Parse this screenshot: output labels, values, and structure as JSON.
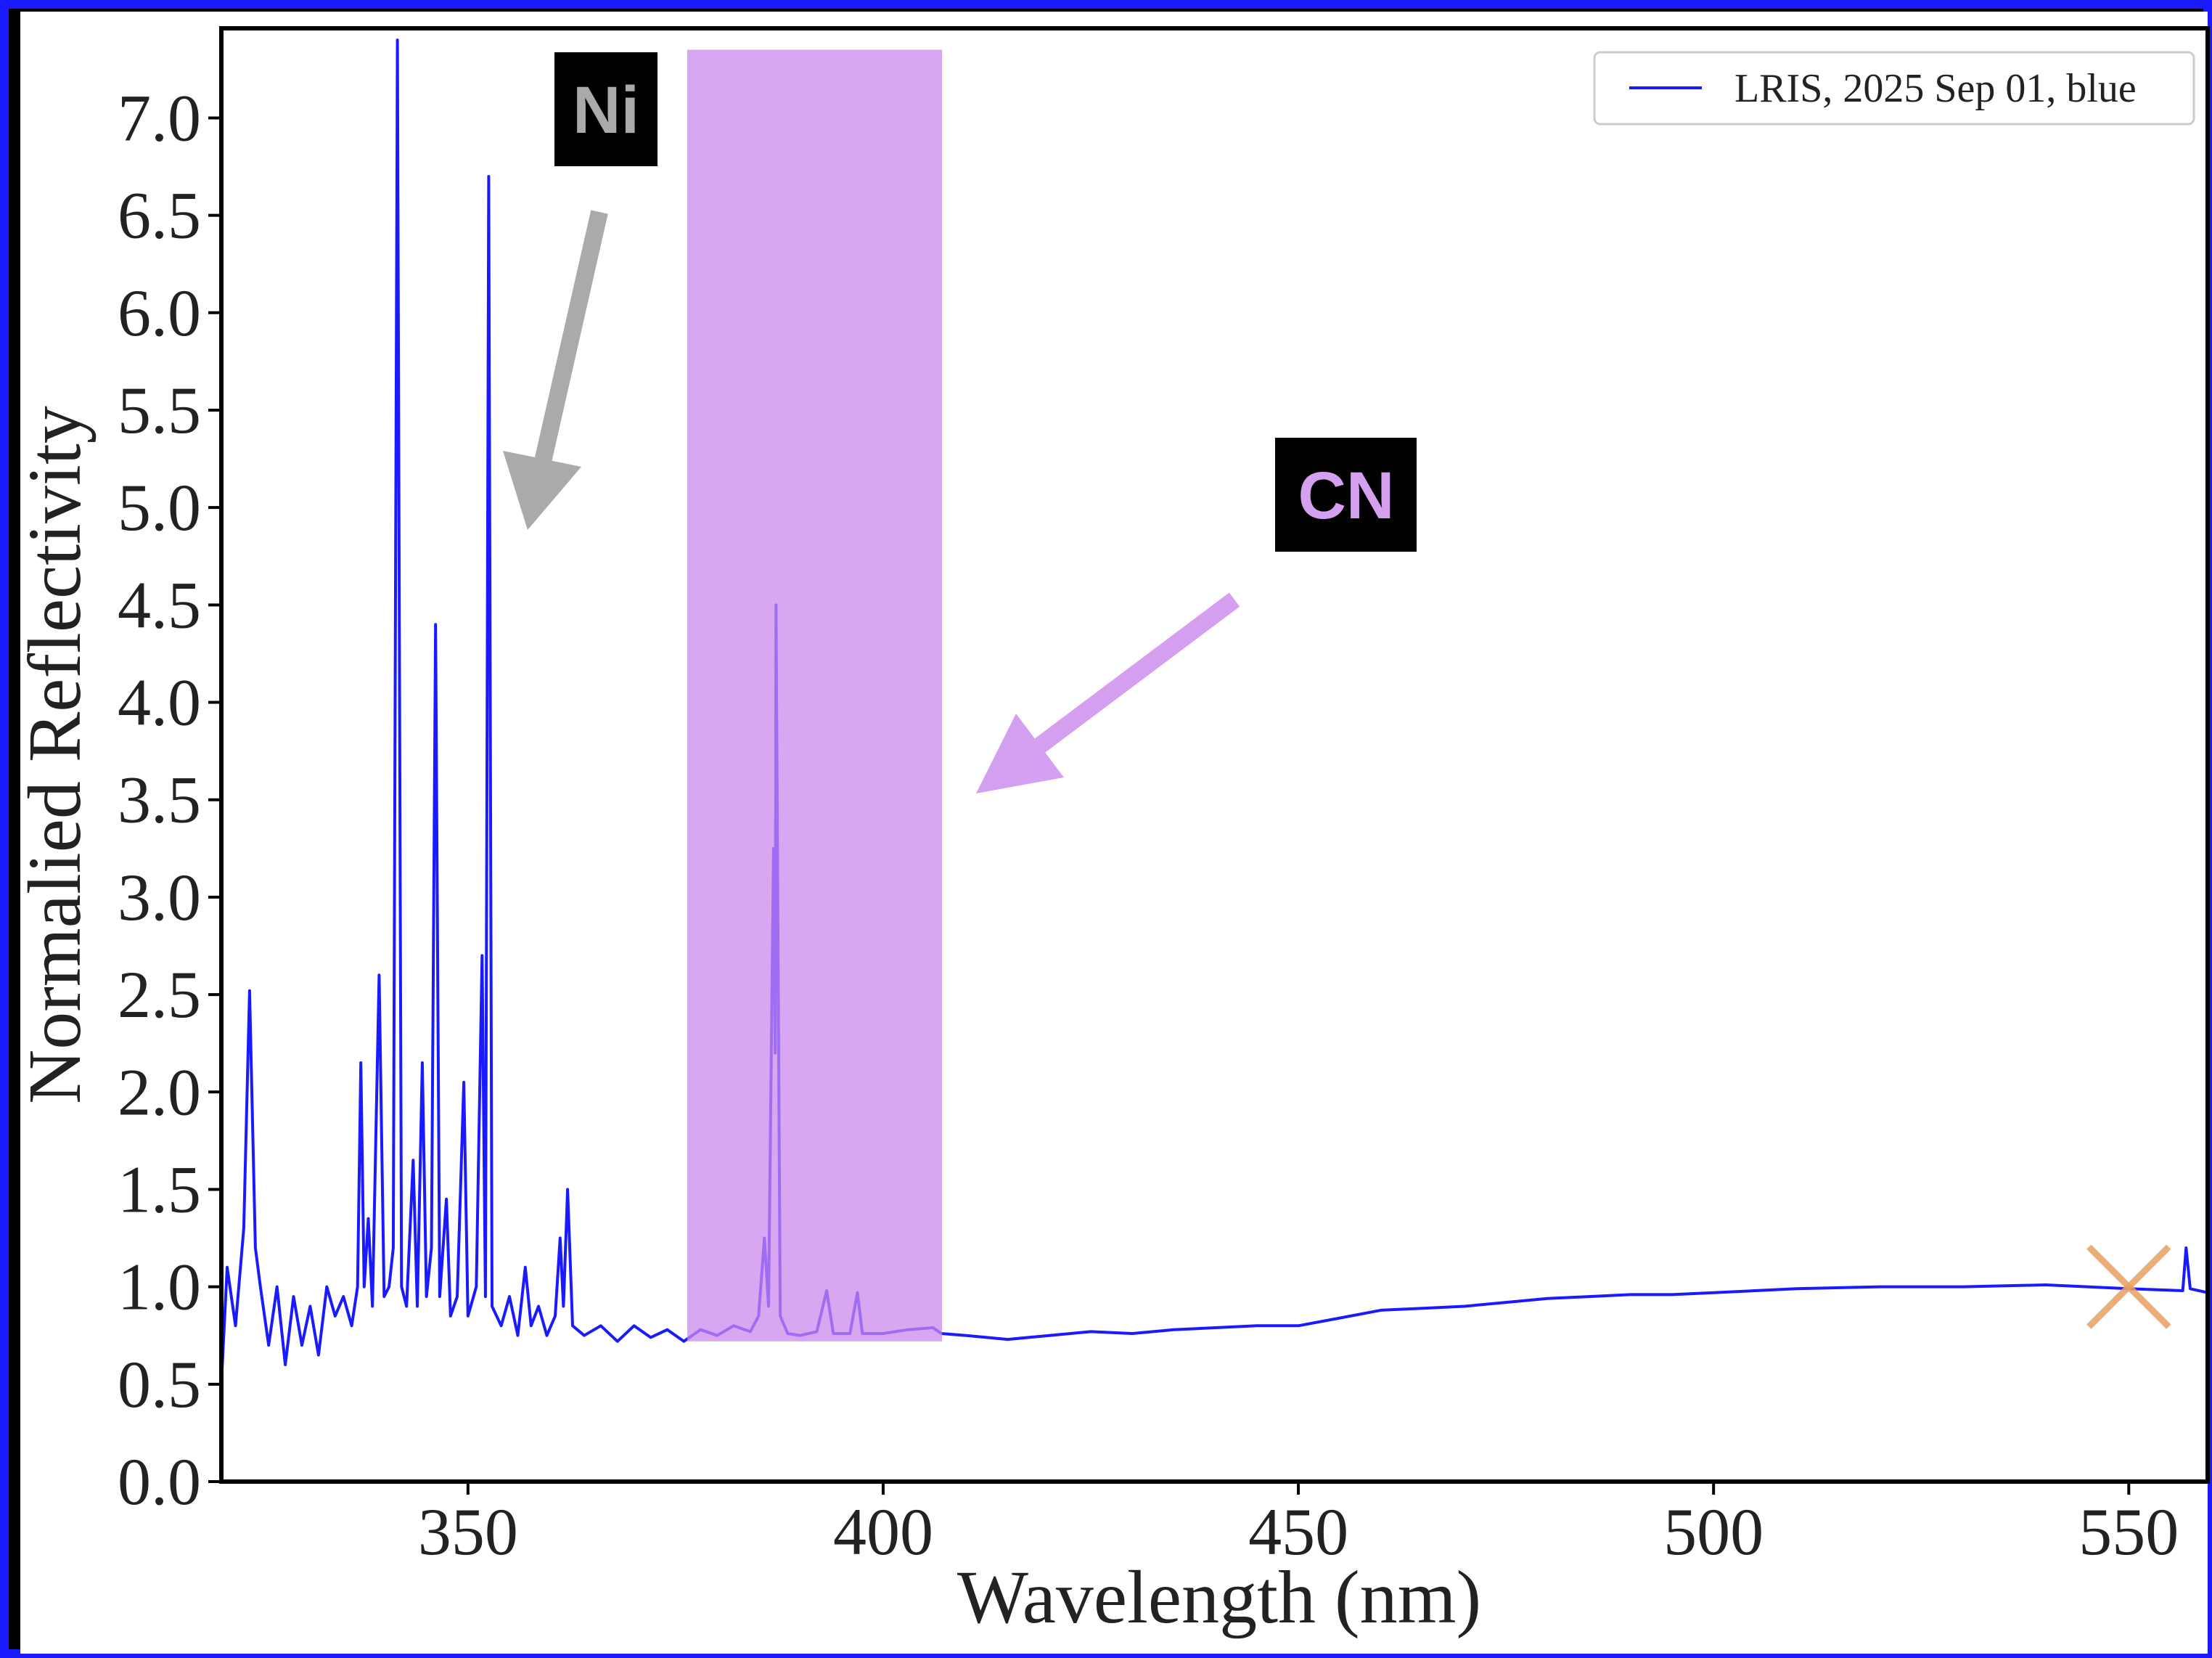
{
  "chart_data": {
    "type": "line",
    "xlabel": "Wavelength (nm)",
    "ylabel": "Normalied Reflectivity",
    "xlim": [
      320.3,
      559.5
    ],
    "ylim": [
      0,
      7.46
    ],
    "xticks": [
      350,
      400,
      450,
      500,
      550
    ],
    "yticks": [
      {
        "value": 0,
        "label": "0.0"
      },
      0.5,
      {
        "value": 1,
        "label": "1.0"
      },
      1.5,
      {
        "value": 2,
        "label": "2.0"
      },
      2.5,
      {
        "value": 3,
        "label": "3.0"
      },
      3.5,
      {
        "value": 4,
        "label": "4.0"
      },
      4.5,
      {
        "value": 5,
        "label": "5.0"
      },
      5.5,
      {
        "value": 6,
        "label": "6.0"
      },
      6.5,
      {
        "value": 7,
        "label": "7.0"
      }
    ],
    "legend": "upper right",
    "series": [
      {
        "name": "LRIS, 2025 Sep 01, blue",
        "color": "#1a1aff",
        "x": [
          320.3,
          321,
          322,
          323,
          323.7,
          324.4,
          325,
          326,
          327,
          328,
          329,
          330,
          331,
          332,
          333,
          334,
          335,
          336,
          336.7,
          337.1,
          337.5,
          338,
          338.5,
          339.3,
          339.9,
          340.5,
          341,
          341.5,
          342,
          342.6,
          343.4,
          343.9,
          344.5,
          345,
          345.6,
          346.1,
          346.6,
          347.4,
          347.9,
          348.7,
          349.5,
          350,
          351,
          351.7,
          352.1,
          352.5,
          352.9,
          354,
          355,
          356,
          356.9,
          357.6,
          358.5,
          359.5,
          360.5,
          361.1,
          361.5,
          362,
          362.6,
          364,
          366,
          368,
          370,
          372,
          374,
          376,
          378,
          380,
          382,
          384,
          385,
          385.7,
          386.2,
          386.8,
          387,
          387.1,
          387.6,
          388.5,
          390,
          392,
          393.2,
          394,
          396,
          396.9,
          397.5,
          400,
          403,
          406,
          407,
          410,
          415,
          420,
          425,
          430,
          435,
          440,
          445,
          450,
          455,
          460,
          465,
          470,
          475,
          480,
          485,
          490,
          495,
          500,
          510,
          520,
          530,
          540,
          550,
          556.5,
          556.9,
          557.4,
          559.5
        ],
        "values": [
          0.5,
          1.1,
          0.8,
          1.3,
          2.52,
          1.2,
          1.0,
          0.7,
          1.0,
          0.6,
          0.95,
          0.7,
          0.9,
          0.65,
          1.0,
          0.85,
          0.95,
          0.8,
          1.0,
          2.15,
          1.0,
          1.35,
          0.9,
          2.6,
          0.95,
          1.0,
          1.2,
          7.4,
          1.0,
          0.9,
          1.65,
          0.9,
          2.15,
          0.95,
          1.2,
          4.4,
          0.95,
          1.45,
          0.85,
          0.95,
          2.05,
          0.85,
          1.0,
          2.7,
          0.95,
          6.7,
          0.9,
          0.8,
          0.95,
          0.75,
          1.1,
          0.8,
          0.9,
          0.75,
          0.85,
          1.25,
          0.9,
          1.5,
          0.8,
          0.75,
          0.8,
          0.72,
          0.8,
          0.74,
          0.78,
          0.72,
          0.78,
          0.75,
          0.8,
          0.77,
          0.85,
          1.25,
          0.9,
          3.25,
          2.2,
          4.5,
          0.85,
          0.76,
          0.75,
          0.77,
          0.98,
          0.76,
          0.76,
          0.97,
          0.76,
          0.76,
          0.78,
          0.79,
          0.76,
          0.75,
          0.73,
          0.75,
          0.77,
          0.76,
          0.78,
          0.79,
          0.8,
          0.8,
          0.84,
          0.88,
          0.89,
          0.9,
          0.92,
          0.94,
          0.95,
          0.96,
          0.96,
          0.97,
          0.99,
          1.0,
          1.0,
          1.01,
          0.99,
          0.98,
          1.2,
          0.99,
          0.97
        ]
      }
    ],
    "span": {
      "x": [
        376.4,
        407.1
      ],
      "y": [
        0.72,
        7.35
      ],
      "color": "#cc88ee"
    },
    "marker": {
      "x": 550,
      "y": 1.0,
      "color": "#e8a060"
    },
    "annotations": [
      {
        "text": "Ni",
        "color": "#aaaaaa"
      },
      {
        "text": "CN",
        "color": "#d6a0f0"
      }
    ]
  }
}
